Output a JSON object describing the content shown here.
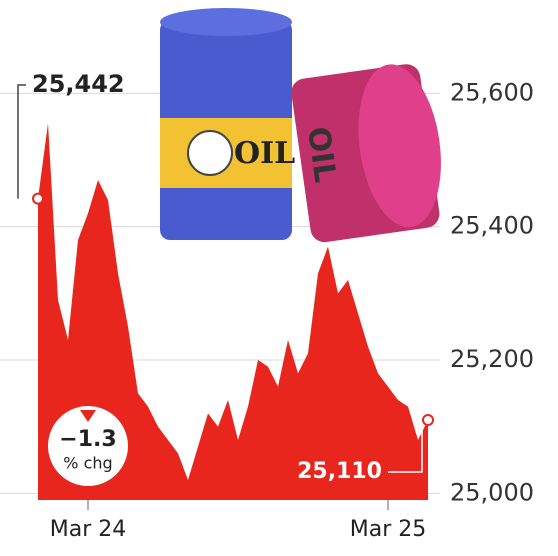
{
  "chart_data": {
    "type": "area",
    "categories": [
      null,
      null,
      null,
      null,
      null,
      "Mar 24",
      null,
      null,
      null,
      null,
      null,
      null,
      null,
      null,
      null,
      null,
      null,
      null,
      null,
      null,
      null,
      null,
      null,
      null,
      null,
      null,
      null,
      null,
      null,
      null,
      null,
      null,
      null,
      null,
      null,
      "Mar 25",
      null,
      null,
      null,
      null
    ],
    "values": [
      25442,
      25555,
      25290,
      25230,
      25380,
      25420,
      25470,
      25440,
      25330,
      25250,
      25150,
      25130,
      25100,
      25080,
      25060,
      25020,
      25070,
      25120,
      25100,
      25140,
      25080,
      25130,
      25200,
      25190,
      25160,
      25230,
      25180,
      25210,
      25330,
      25370,
      25300,
      25320,
      25270,
      25220,
      25180,
      25160,
      25140,
      25130,
      25080,
      25110
    ],
    "value_labels": [
      "25,442",
      null,
      null,
      null,
      null,
      null,
      null,
      null,
      null,
      null,
      null,
      null,
      null,
      null,
      null,
      null,
      null,
      null,
      null,
      null,
      null,
      null,
      null,
      null,
      null,
      null,
      null,
      null,
      null,
      null,
      null,
      null,
      null,
      null,
      null,
      null,
      null,
      null,
      null,
      "25,110"
    ],
    "color": "#e8261e",
    "ylim": [
      24990,
      25740
    ],
    "yticks": [
      {
        "value": 25000,
        "label": "25,000"
      },
      {
        "value": 25200,
        "label": "25,200"
      },
      {
        "value": 25400,
        "label": "25,400"
      },
      {
        "value": 25600,
        "label": "25,600"
      }
    ],
    "grid": true,
    "change_value": "−1.3",
    "change_unit": "% chg",
    "illustration_labels": [
      "OIL",
      "OIL"
    ]
  }
}
